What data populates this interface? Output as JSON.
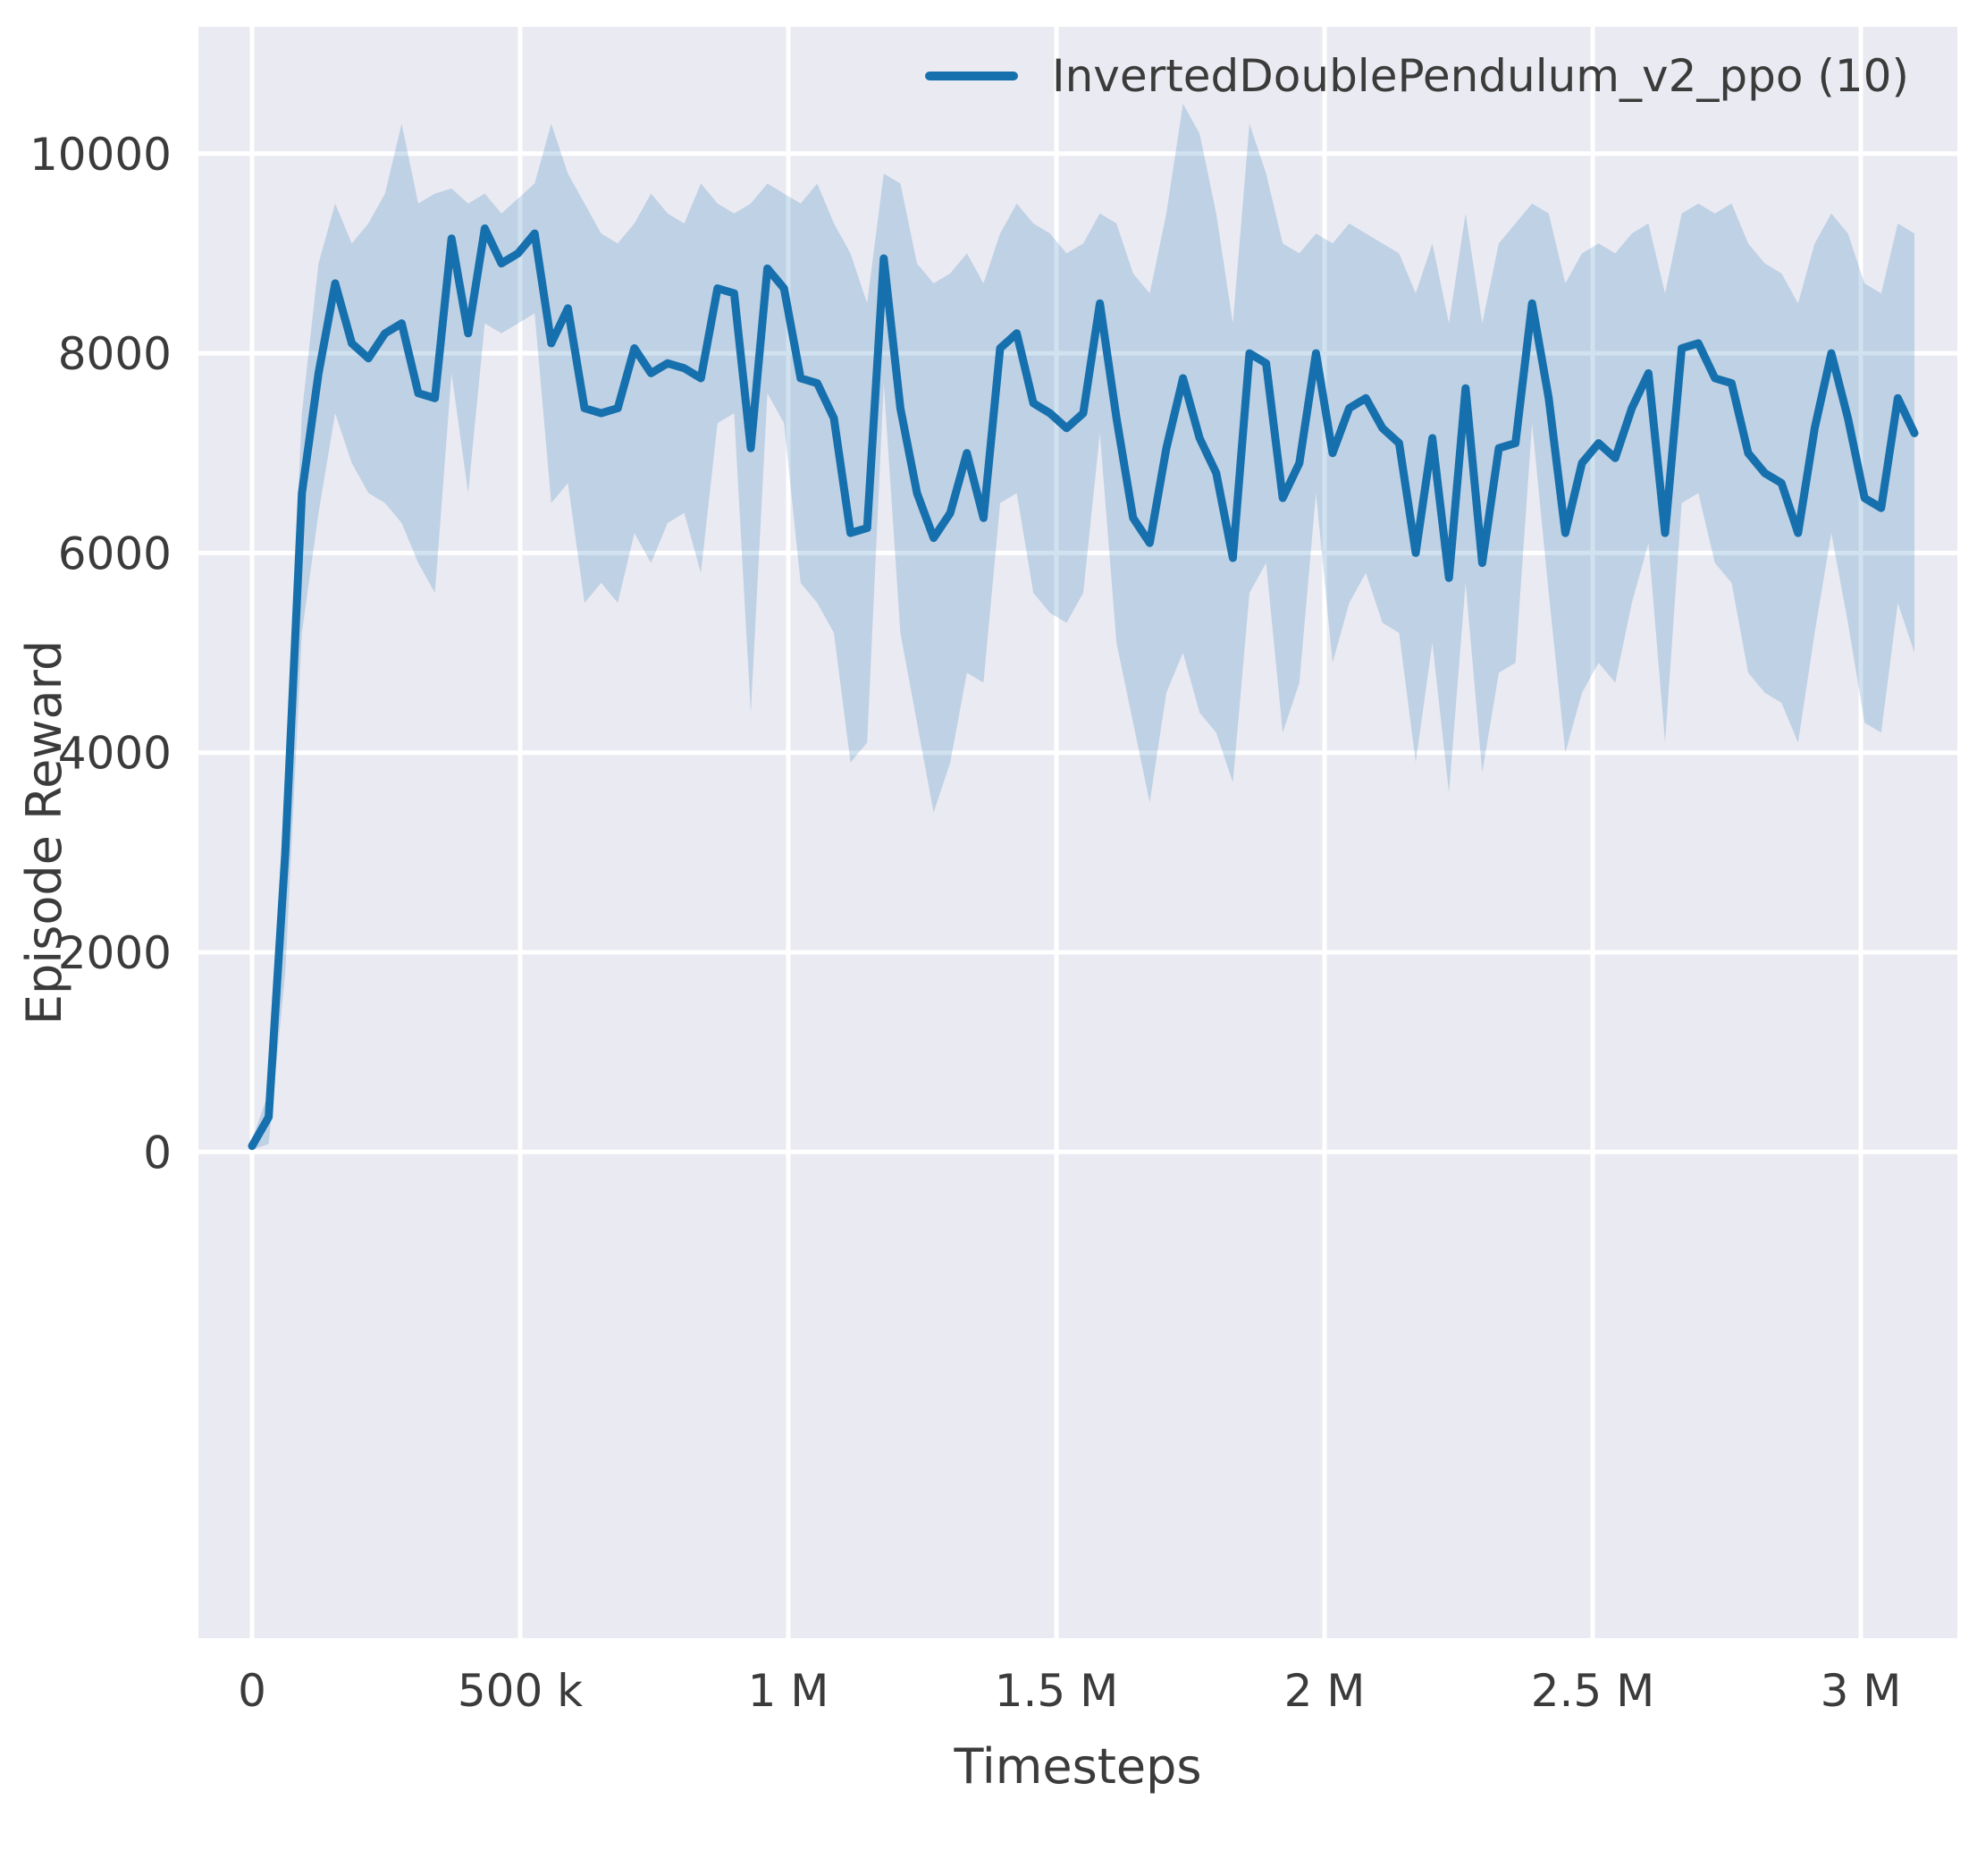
{
  "figure": {
    "xlabel": "Timesteps",
    "ylabel": "Episode Reward",
    "colors": {
      "background": "#ffffff",
      "panel": "#eaeaf2",
      "grid": "#ffffff",
      "text": "#3b3b3b",
      "line": "#1670ad"
    }
  },
  "legend": {
    "entries": [
      {
        "label": "InvertedDoublePendulum_v2_ppo (10)",
        "color": "#1670ad"
      }
    ]
  },
  "chart_data": {
    "type": "line",
    "title": "",
    "xlabel": "Timesteps",
    "ylabel": "Episode Reward",
    "legend_position": "upper right",
    "grid": true,
    "xlim": [
      -100000,
      3180000
    ],
    "ylim": [
      -4870,
      11270
    ],
    "xticks": {
      "values": [
        0,
        500000,
        1000000,
        1500000,
        2000000,
        2500000,
        3000000
      ],
      "labels": [
        "0",
        "500 k",
        "1 M",
        "1.5 M",
        "2 M",
        "2.5 M",
        "3 M"
      ]
    },
    "yticks": {
      "values": [
        0,
        2000,
        4000,
        6000,
        8000,
        10000
      ],
      "labels": [
        "0",
        "2000",
        "4000",
        "6000",
        "8000",
        "10000"
      ]
    },
    "x": [
      0,
      31000,
      62000,
      93000,
      124000,
      155000,
      186000,
      217000,
      248000,
      279000,
      310000,
      341000,
      372000,
      403000,
      434000,
      465000,
      496000,
      527000,
      558000,
      589000,
      620000,
      651000,
      682000,
      713000,
      744000,
      775000,
      806000,
      837000,
      868000,
      899000,
      930000,
      961000,
      992000,
      1023000,
      1054000,
      1085000,
      1116000,
      1147000,
      1178000,
      1209000,
      1240000,
      1271000,
      1302000,
      1333000,
      1364000,
      1395000,
      1426000,
      1457000,
      1488000,
      1519000,
      1550000,
      1581000,
      1612000,
      1643000,
      1674000,
      1705000,
      1736000,
      1767000,
      1798000,
      1829000,
      1860000,
      1891000,
      1922000,
      1953000,
      1984000,
      2015000,
      2046000,
      2077000,
      2108000,
      2139000,
      2170000,
      2201000,
      2232000,
      2263000,
      2294000,
      2325000,
      2356000,
      2387000,
      2418000,
      2449000,
      2480000,
      2511000,
      2542000,
      2573000,
      2604000,
      2635000,
      2666000,
      2697000,
      2728000,
      2759000,
      2790000,
      2821000,
      2852000,
      2883000,
      2914000,
      2945000,
      2976000,
      3007000,
      3038000,
      3069000,
      3100000
    ],
    "series": [
      {
        "name": "InvertedDoublePendulum_v2_ppo (10)",
        "color": "#1670ad",
        "band_opacity": 0.2,
        "values": [
          60,
          350,
          3000,
          6600,
          7800,
          8700,
          8100,
          7950,
          8200,
          8300,
          7600,
          7550,
          9150,
          8200,
          9250,
          8900,
          9000,
          9200,
          8100,
          8450,
          7450,
          7400,
          7450,
          8050,
          7800,
          7900,
          7850,
          7750,
          8650,
          8600,
          7050,
          8850,
          8650,
          7750,
          7700,
          7350,
          6200,
          6250,
          8950,
          7450,
          6600,
          6150,
          6400,
          7000,
          6350,
          8050,
          8200,
          7500,
          7400,
          7250,
          7400,
          8500,
          7350,
          6350,
          6100,
          7050,
          7750,
          7150,
          6800,
          5950,
          8000,
          7900,
          6550,
          6900,
          8000,
          7000,
          7450,
          7550,
          7250,
          7100,
          6000,
          7150,
          5750,
          7650,
          5900,
          7050,
          7100,
          8500,
          7550,
          6200,
          6900,
          7100,
          6950,
          7450,
          7800,
          6200,
          8050,
          8100,
          7750,
          7700,
          7000,
          6800,
          6700,
          6200,
          7250,
          8000,
          7350,
          6550,
          6450,
          7550,
          7200
        ],
        "band_upper": [
          120,
          600,
          3800,
          7400,
          8900,
          9500,
          9100,
          9300,
          9600,
          10300,
          9500,
          9600,
          9650,
          9500,
          9600,
          9400,
          9550,
          9700,
          10300,
          9800,
          9500,
          9200,
          9100,
          9300,
          9600,
          9400,
          9300,
          9700,
          9500,
          9400,
          9500,
          9700,
          9600,
          9500,
          9700,
          9300,
          9000,
          8500,
          9800,
          9700,
          8900,
          8700,
          8800,
          9000,
          8700,
          9200,
          9500,
          9300,
          9200,
          9000,
          9100,
          9400,
          9300,
          8800,
          8600,
          9400,
          10500,
          10200,
          9400,
          8300,
          10300,
          9800,
          9100,
          9000,
          9200,
          9100,
          9300,
          9200,
          9100,
          9000,
          8600,
          9100,
          8300,
          9400,
          8300,
          9100,
          9300,
          9500,
          9400,
          8700,
          9000,
          9100,
          9000,
          9200,
          9300,
          8600,
          9400,
          9500,
          9400,
          9500,
          9100,
          8900,
          8800,
          8500,
          9100,
          9400,
          9200,
          8700,
          8600,
          9300,
          9200
        ],
        "band_lower": [
          20,
          80,
          1800,
          5200,
          6400,
          7400,
          6900,
          6600,
          6500,
          6300,
          5900,
          5600,
          7800,
          6600,
          8300,
          8200,
          8300,
          8400,
          6500,
          6700,
          5500,
          5700,
          5500,
          6200,
          5900,
          6300,
          6400,
          5800,
          7300,
          7400,
          4400,
          7600,
          7300,
          5700,
          5500,
          5200,
          3900,
          4100,
          7700,
          5200,
          4300,
          3400,
          3900,
          4800,
          4700,
          6500,
          6600,
          5600,
          5400,
          5300,
          5600,
          7200,
          5100,
          4300,
          3500,
          4600,
          5000,
          4400,
          4200,
          3700,
          5600,
          5900,
          4200,
          4700,
          6600,
          4900,
          5500,
          5800,
          5300,
          5200,
          3900,
          5100,
          3600,
          5700,
          3800,
          4800,
          4900,
          7300,
          5600,
          4000,
          4600,
          4900,
          4700,
          5500,
          6100,
          4100,
          6500,
          6600,
          5900,
          5700,
          4800,
          4600,
          4500,
          4100,
          5200,
          6200,
          5300,
          4300,
          4200,
          5500,
          5000
        ]
      }
    ]
  }
}
